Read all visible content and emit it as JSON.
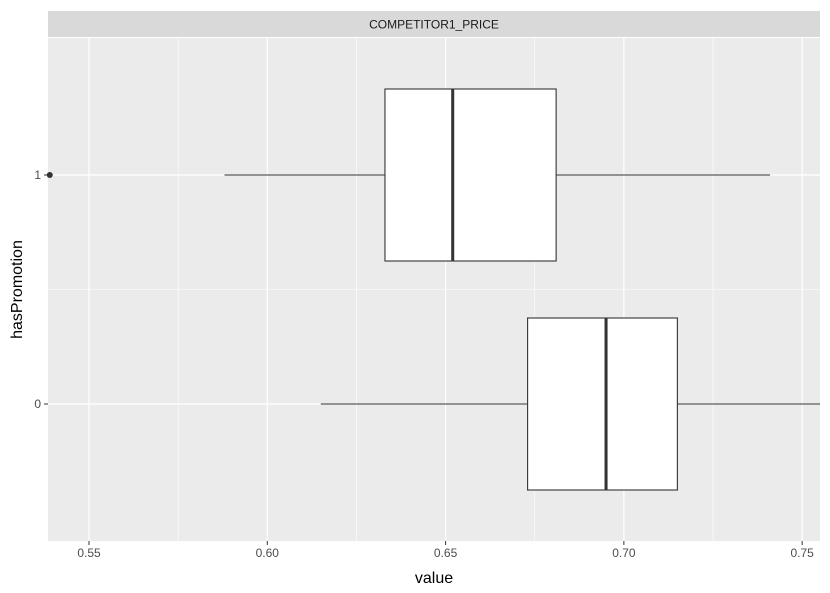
{
  "chart_data": {
    "type": "boxplot",
    "orientation": "horizontal",
    "facet_label": "COMPETITOR1_PRICE",
    "xlabel": "value",
    "ylabel": "hasPromotion",
    "xlim": [
      0.5385,
      0.755
    ],
    "x_ticks": [
      {
        "value": 0.55,
        "label": "0.55"
      },
      {
        "value": 0.6,
        "label": "0.60"
      },
      {
        "value": 0.65,
        "label": "0.65"
      },
      {
        "value": 0.7,
        "label": "0.70"
      },
      {
        "value": 0.75,
        "label": "0.75"
      }
    ],
    "categories": [
      "1",
      "0"
    ],
    "boxes": [
      {
        "category": "1",
        "whisker_low": 0.588,
        "q1": 0.633,
        "median": 0.652,
        "q3": 0.681,
        "whisker_high": 0.741,
        "outliers": [
          0.539
        ]
      },
      {
        "category": "0",
        "whisker_low": 0.615,
        "q1": 0.673,
        "median": 0.695,
        "q3": 0.715,
        "whisker_high": 0.755,
        "outliers": []
      }
    ],
    "grid": true,
    "colors": {
      "panel": "#EBEBEB",
      "strip": "#D9D9D9",
      "grid": "#FFFFFF",
      "box_fill": "#FFFFFF",
      "box_line": "#333333"
    }
  }
}
